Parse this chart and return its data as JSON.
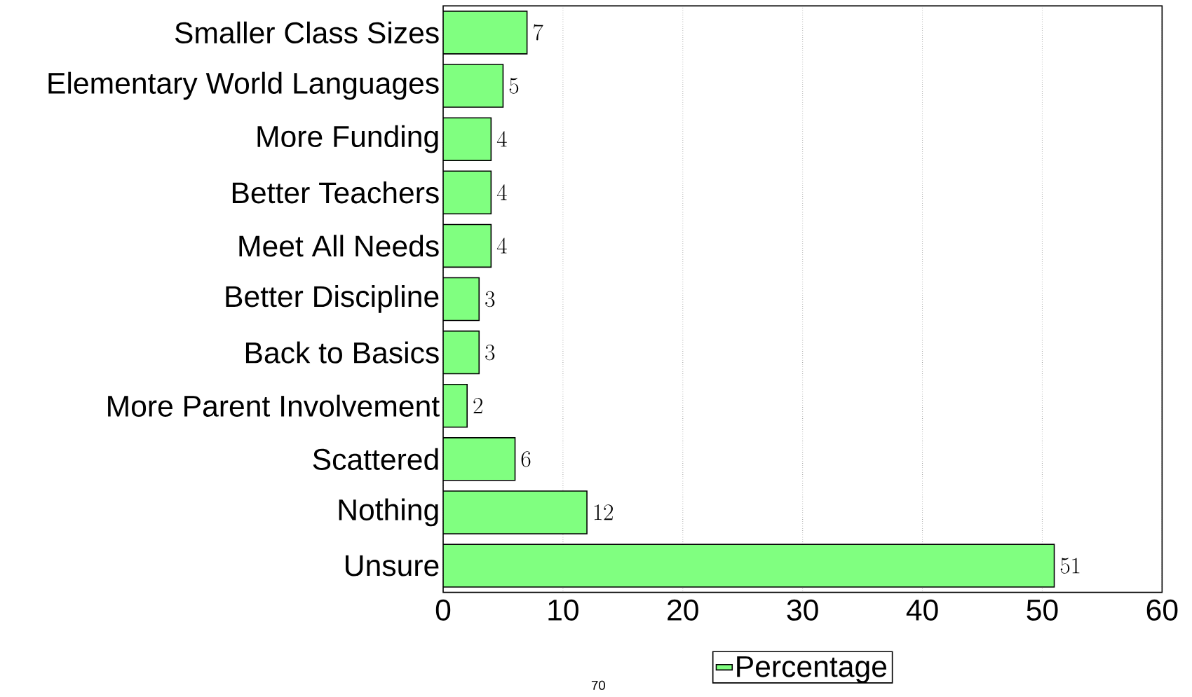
{
  "chart_data": {
    "type": "bar",
    "orientation": "horizontal",
    "categories": [
      "Smaller Class Sizes",
      "Elementary World Languages",
      "More Funding",
      "Better Teachers",
      "Meet All Needs",
      "Better Discipline",
      "Back to Basics",
      "More Parent Involvement",
      "Scattered",
      "Nothing",
      "Unsure"
    ],
    "series": [
      {
        "name": "Percentage",
        "color": "#80ff80",
        "values": [
          7,
          5,
          4,
          4,
          4,
          3,
          3,
          2,
          6,
          12,
          51
        ]
      }
    ],
    "xlim": [
      0,
      60
    ],
    "xticks": [
      0,
      10,
      20,
      30,
      40,
      50,
      60
    ],
    "grid": "x",
    "legend": "bottom",
    "data_labels": true,
    "annotations": [
      "70"
    ]
  }
}
